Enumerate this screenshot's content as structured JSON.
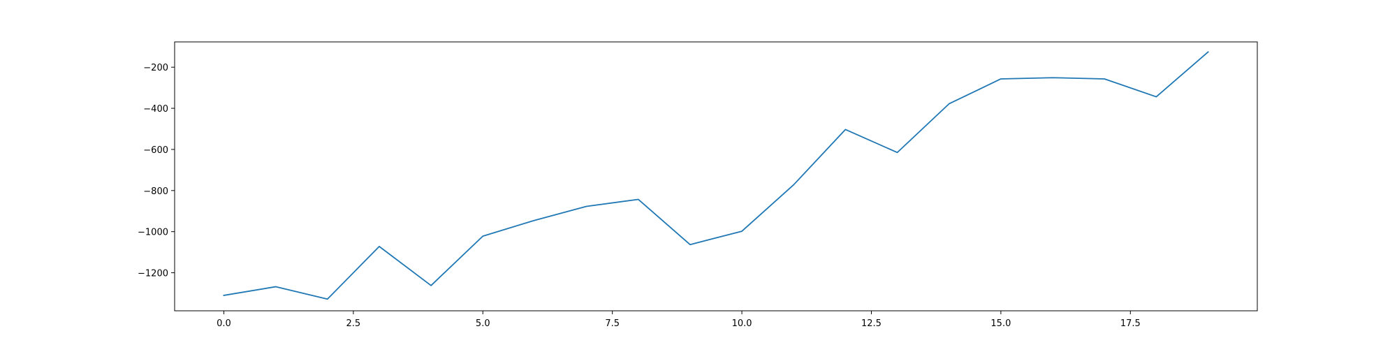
{
  "chart_data": {
    "type": "line",
    "title": "",
    "xlabel": "",
    "ylabel": "",
    "xlim": [
      -0.95,
      19.95
    ],
    "ylim": [
      -1385,
      -77
    ],
    "grid": false,
    "x_ticks": [
      0.0,
      2.5,
      5.0,
      7.5,
      10.0,
      12.5,
      15.0,
      17.5
    ],
    "x_tick_labels": [
      "0.0",
      "2.5",
      "5.0",
      "7.5",
      "10.0",
      "12.5",
      "15.0",
      "17.5"
    ],
    "y_ticks": [
      -1200,
      -1000,
      -800,
      -600,
      -400,
      -200
    ],
    "y_tick_labels": [
      "−1200",
      "−1000",
      "−800",
      "−600",
      "−400",
      "−200"
    ],
    "series": [
      {
        "color": "#1f77b4",
        "x": [
          0,
          1,
          2,
          3,
          4,
          5,
          6,
          7,
          8,
          9,
          10,
          11,
          12,
          13,
          14,
          15,
          16,
          17,
          18,
          19
        ],
        "y": [
          -1310,
          -1268,
          -1328,
          -1072,
          -1262,
          -1022,
          -945,
          -877,
          -843,
          -1063,
          -998,
          -772,
          -503,
          -615,
          -378,
          -257,
          -251,
          -257,
          -344,
          -126
        ]
      }
    ]
  }
}
